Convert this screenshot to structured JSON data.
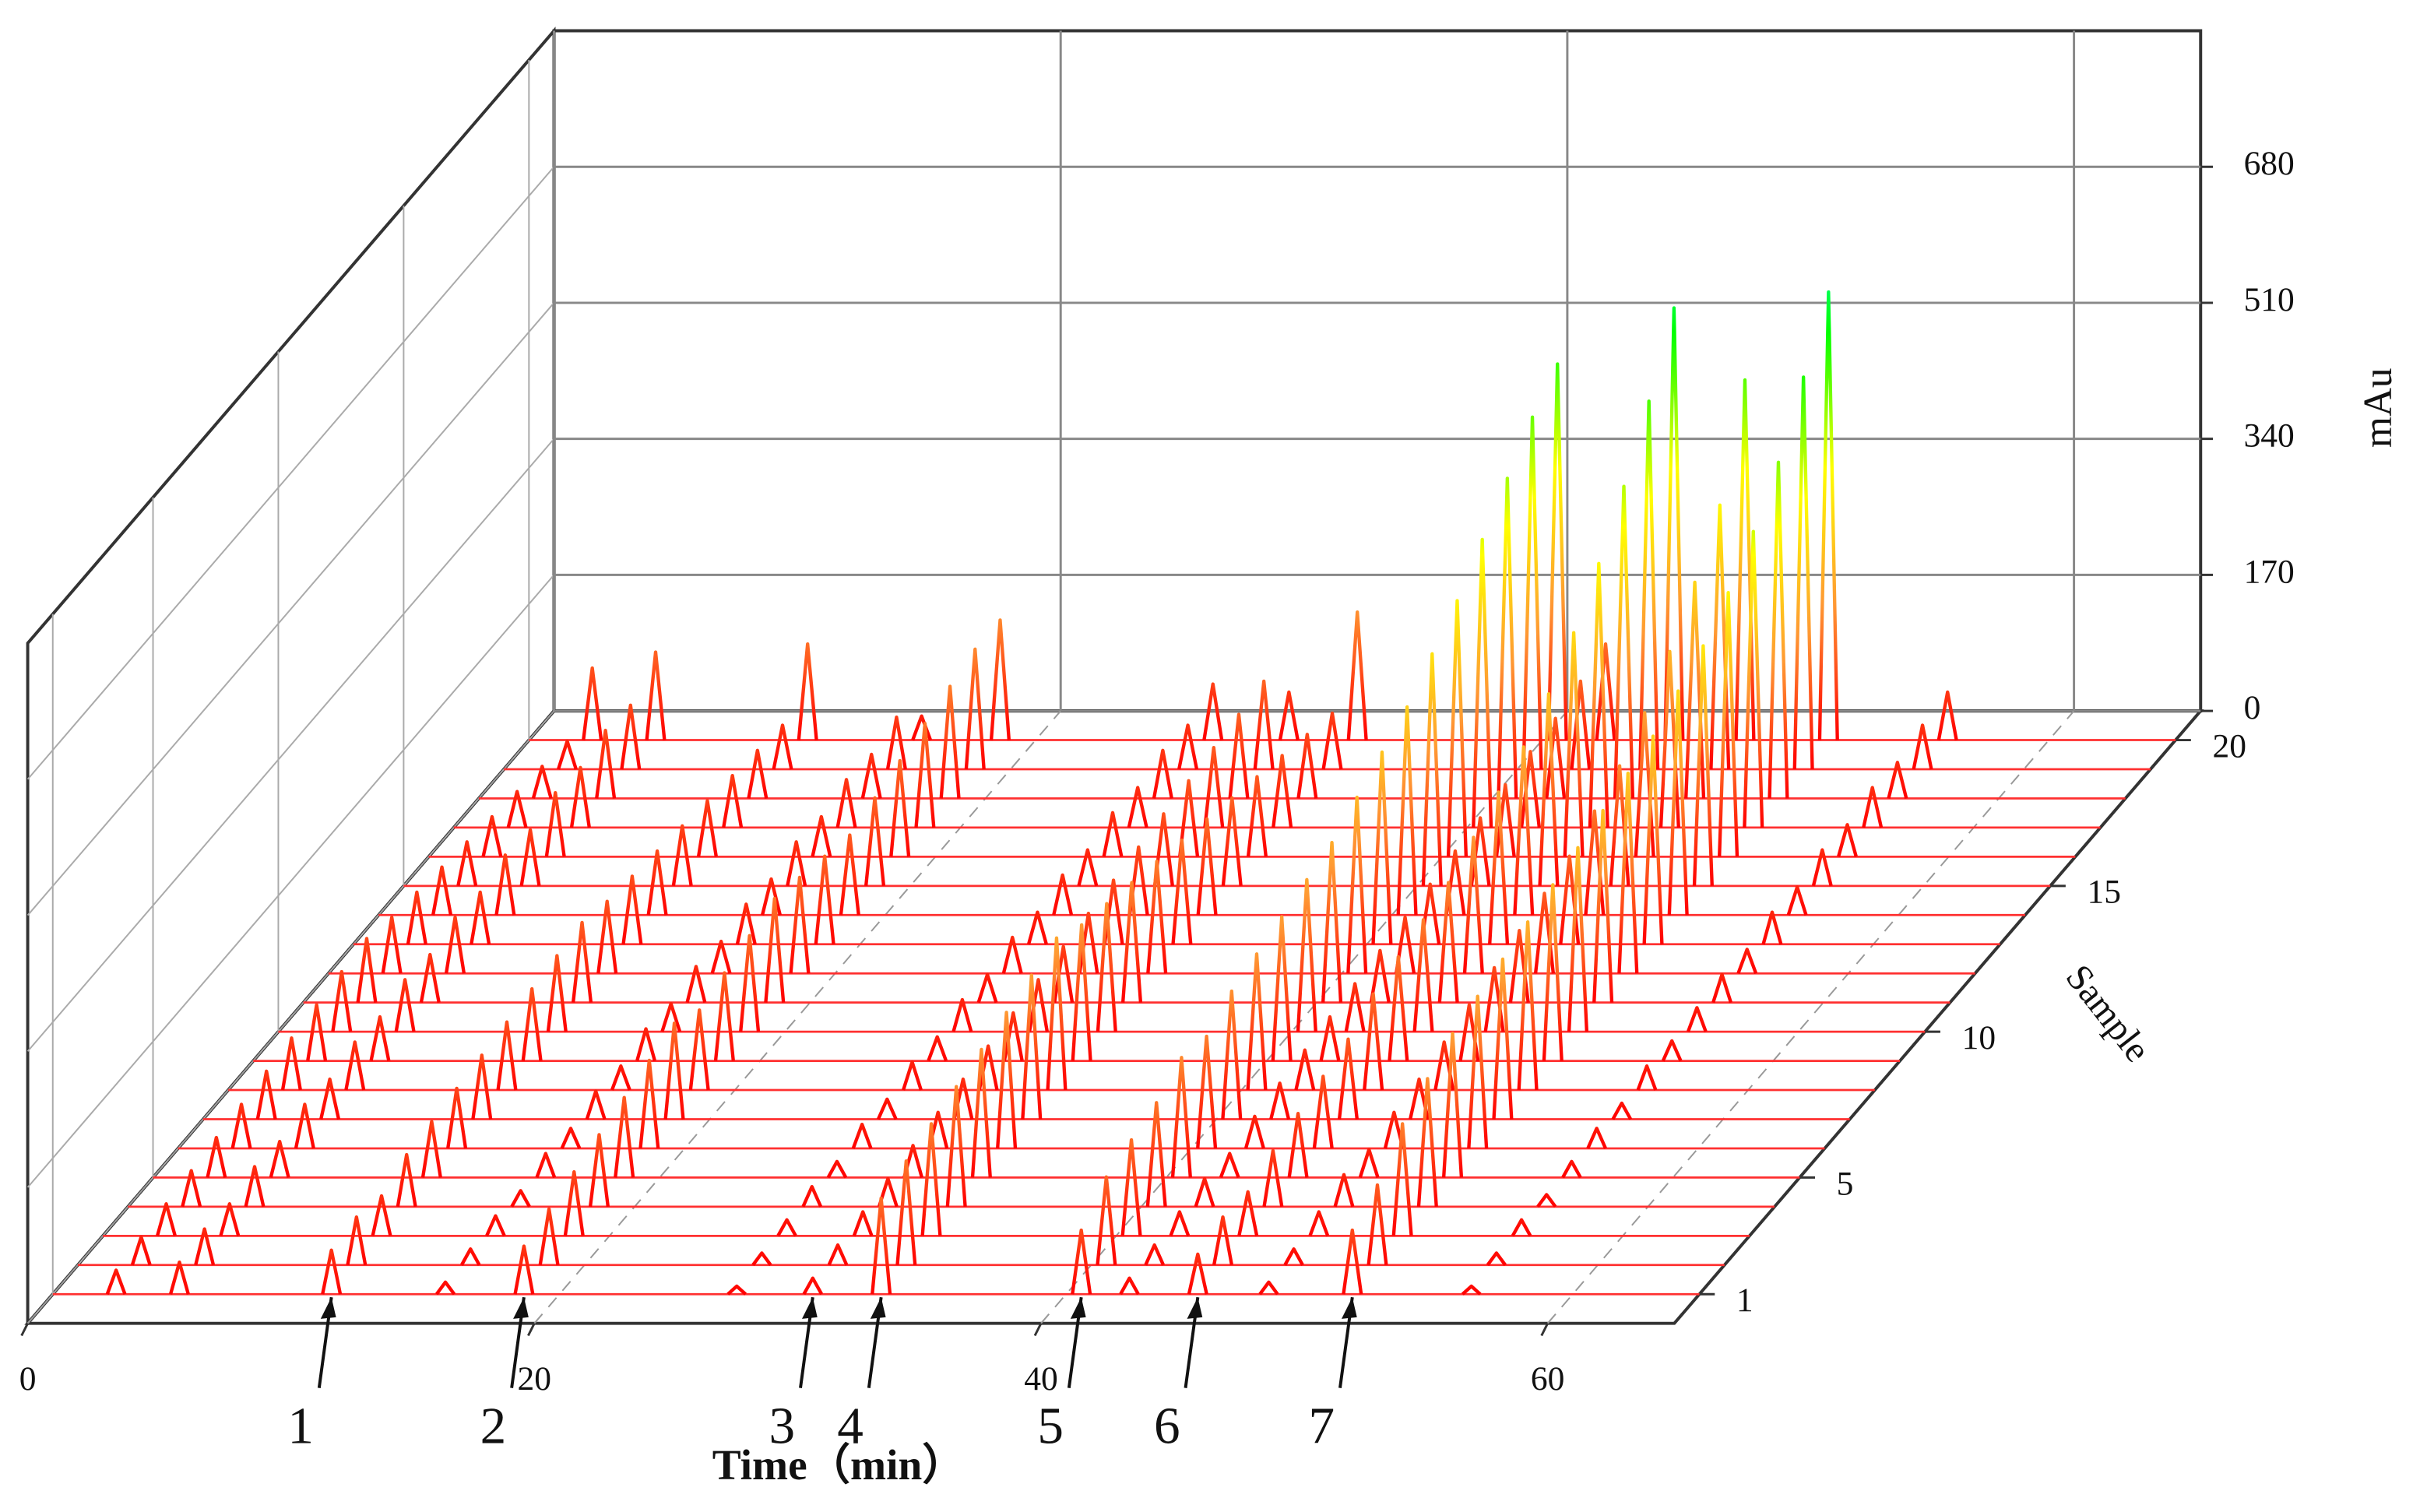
{
  "chart_data": {
    "type": "waterfall3d",
    "xlabel": "Time（min）",
    "ylabel": "mAu",
    "zlabel": "Sample",
    "xlim": [
      0,
      65
    ],
    "xticks": [
      0,
      20,
      40,
      60
    ],
    "ylim": [
      0,
      850
    ],
    "yticks": [
      0,
      170,
      340,
      510,
      680
    ],
    "zlim": [
      0,
      21
    ],
    "zticks": [
      1,
      5,
      10,
      15,
      20
    ],
    "grid": true,
    "colors": [
      "#ff0000",
      "#ff9933",
      "#ffff00",
      "#00ff00",
      "#00ffff",
      "#3333ff"
    ],
    "x": [
      2.5,
      5,
      11,
      15.5,
      18.6,
      27,
      30,
      32.7,
      40.6,
      42.5,
      45.2,
      48,
      51.3,
      56
    ],
    "series": [
      {
        "z": 1,
        "values": [
          30,
          40,
          55,
          15,
          60,
          10,
          20,
          120,
          80,
          20,
          50,
          15,
          80,
          10
        ]
      },
      {
        "z": 2,
        "values": [
          35,
          45,
          60,
          20,
          70,
          15,
          25,
          130,
          110,
          25,
          60,
          20,
          100,
          15
        ]
      },
      {
        "z": 3,
        "values": [
          40,
          40,
          50,
          25,
          80,
          20,
          30,
          140,
          120,
          30,
          55,
          30,
          140,
          20
        ]
      },
      {
        "z": 4,
        "values": [
          45,
          50,
          65,
          20,
          90,
          25,
          35,
          150,
          130,
          35,
          70,
          40,
          160,
          15
        ]
      },
      {
        "z": 5,
        "values": [
          50,
          45,
          70,
          30,
          100,
          20,
          40,
          160,
          150,
          30,
          80,
          35,
          180,
          20
        ]
      },
      {
        "z": 6,
        "values": [
          55,
          55,
          75,
          25,
          110,
          30,
          45,
          170,
          140,
          40,
          90,
          45,
          190,
          25
        ]
      },
      {
        "z": 7,
        "values": [
          60,
          50,
          80,
          35,
          120,
          25,
          50,
          180,
          160,
          45,
          100,
          50,
          200,
          20
        ]
      },
      {
        "z": 8,
        "values": [
          65,
          60,
          85,
          30,
          100,
          35,
          55,
          190,
          170,
          50,
          120,
          60,
          210,
          30
        ]
      },
      {
        "z": 9,
        "values": [
          70,
          55,
          90,
          40,
          110,
          30,
          60,
          170,
          180,
          55,
          130,
          70,
          220,
          25
        ]
      },
      {
        "z": 10,
        "values": [
          75,
          65,
          95,
          35,
          120,
          40,
          65,
          160,
          190,
          60,
          140,
          80,
          230,
          30
        ]
      },
      {
        "z": 11,
        "values": [
          80,
          60,
          100,
          45,
          130,
          35,
          70,
          150,
          200,
          65,
          150,
          90,
          240,
          35
        ]
      },
      {
        "z": 12,
        "values": [
          70,
          70,
          90,
          40,
          120,
          45,
          75,
          140,
          220,
          70,
          170,
          100,
          250,
          30
        ]
      },
      {
        "z": 13,
        "values": [
          65,
          65,
          85,
          50,
          110,
          40,
          80,
          130,
          240,
          75,
          190,
          110,
          260,
          40
        ]
      },
      {
        "z": 14,
        "values": [
          60,
          75,
          80,
          45,
          100,
          50,
          85,
          120,
          260,
          80,
          210,
          130,
          280,
          35
        ]
      },
      {
        "z": 15,
        "values": [
          55,
          70,
          75,
          55,
          110,
          45,
          90,
          110,
          290,
          85,
          240,
          150,
          300,
          45
        ]
      },
      {
        "z": 16,
        "values": [
          50,
          80,
          70,
          50,
          120,
          55,
          95,
          100,
          320,
          90,
          280,
          180,
          330,
          40
        ]
      },
      {
        "z": 17,
        "values": [
          45,
          75,
          65,
          60,
          130,
          50,
          100,
          90,
          360,
          95,
          330,
          220,
          370,
          50
        ]
      },
      {
        "z": 18,
        "values": [
          40,
          85,
          60,
          55,
          140,
          60,
          105,
          80,
          400,
          100,
          390,
          270,
          420,
          45
        ]
      },
      {
        "z": 19,
        "values": [
          35,
          80,
          55,
          65,
          150,
          55,
          110,
          70,
          440,
          110,
          460,
          330,
          490,
          55
        ]
      },
      {
        "z": 20,
        "values": [
          90,
          110,
          120,
          30,
          150,
          70,
          60,
          160,
          470,
          120,
          540,
          450,
          560,
          60
        ]
      }
    ],
    "annotations": [
      {
        "text": "1",
        "x": 11
      },
      {
        "text": "2",
        "x": 18.6
      },
      {
        "text": "3",
        "x": 30
      },
      {
        "text": "4",
        "x": 32.7
      },
      {
        "text": "5",
        "x": 40.6
      },
      {
        "text": "6",
        "x": 45.2
      },
      {
        "text": "7",
        "x": 51.3
      }
    ]
  }
}
